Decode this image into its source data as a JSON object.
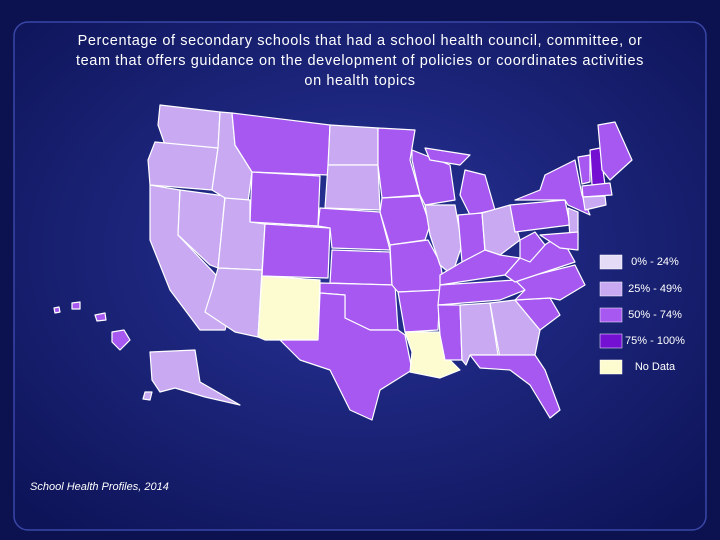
{
  "header": {
    "title_lines": [
      "Percentage of secondary schools that had a school health council, committee, or",
      "team that offers guidance on the development of policies or coordinates activities",
      "on health topics"
    ]
  },
  "legend": {
    "items": [
      {
        "label": "0% - 24%",
        "color": "#e4dcf6"
      },
      {
        "label": "25% - 49%",
        "color": "#c9a9f2"
      },
      {
        "label": "50% - 74%",
        "color": "#a658f0"
      },
      {
        "label": "75% - 100%",
        "color": "#7410d2"
      },
      {
        "label": "No Data",
        "color": "#fdfbd0"
      }
    ]
  },
  "source": "School Health Profiles, 2014"
}
